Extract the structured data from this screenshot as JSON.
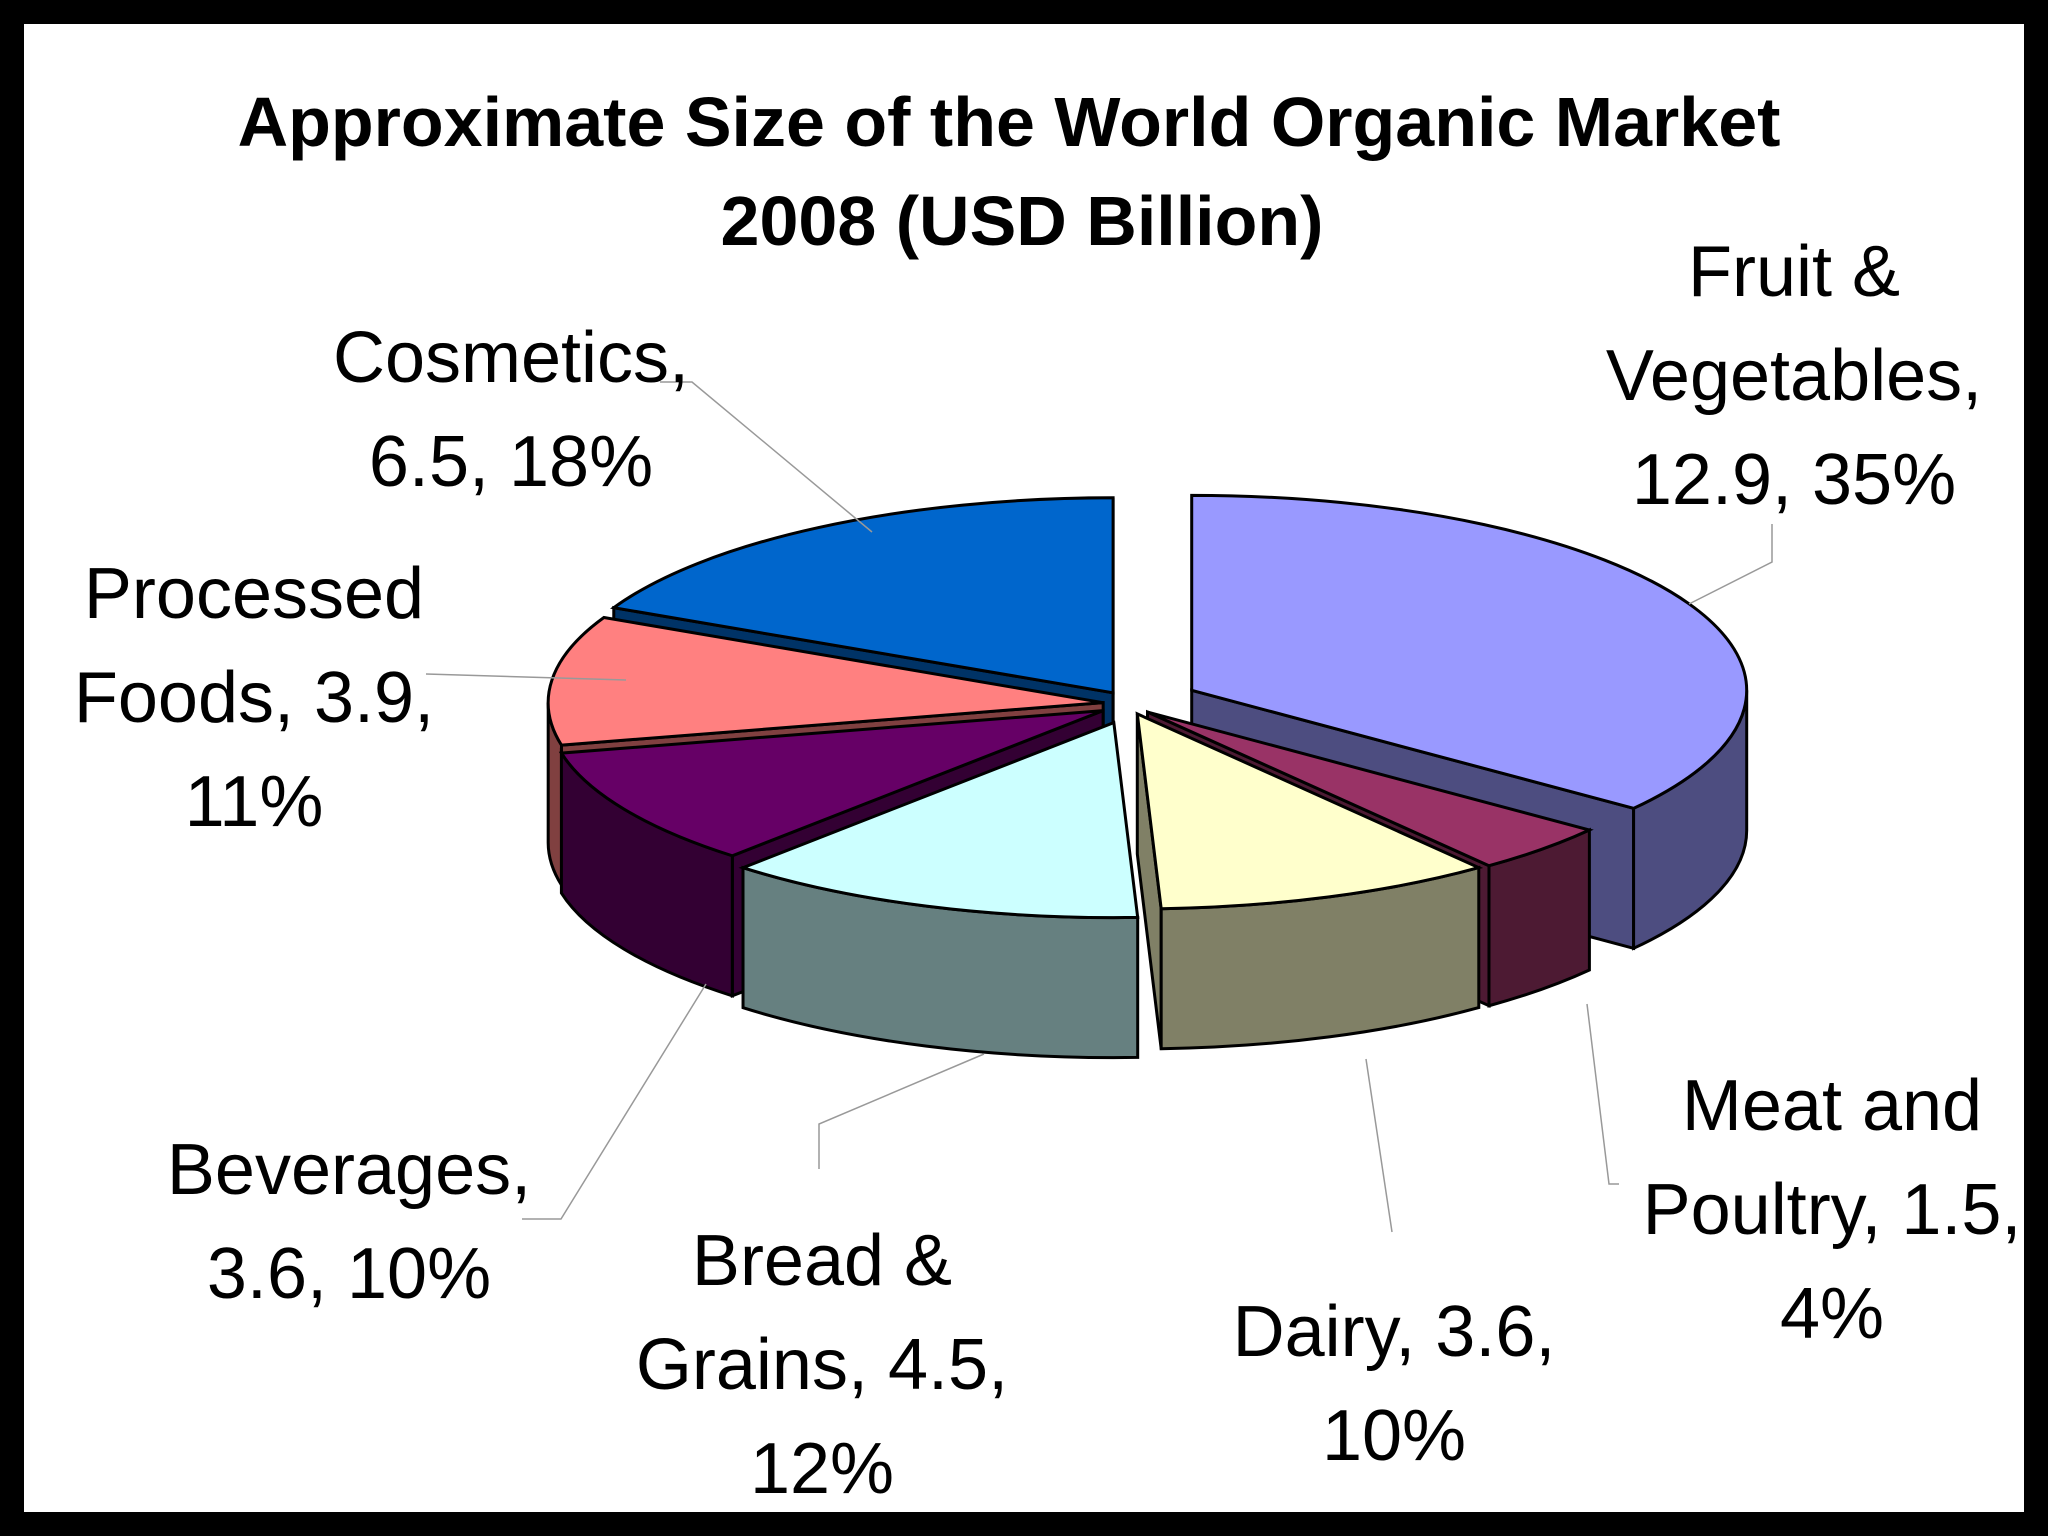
{
  "chart_data": {
    "type": "pie",
    "style": "3d-exploded",
    "title": "Approximate Size of the World Organic Market 2008 (USD Billion)",
    "title_lines": [
      "Approximate Size of the World Organic Market",
      "2008 (USD Billion)"
    ],
    "slices": [
      {
        "name": "Fruit & Vegetables",
        "value": 12.9,
        "percent": 35,
        "color": "#9999ff",
        "side_color": "#4d4d80",
        "label_lines": [
          "Fruit &",
          "Vegetables,",
          "12.9, 35%"
        ]
      },
      {
        "name": "Meat and Poultry",
        "value": 1.5,
        "percent": 4,
        "color": "#993366",
        "side_color": "#4d1a33",
        "label_lines": [
          "Meat and",
          "Poultry, 1.5,",
          "4%"
        ]
      },
      {
        "name": "Dairy",
        "value": 3.6,
        "percent": 10,
        "color": "#ffffcc",
        "side_color": "#808066",
        "label_lines": [
          "Dairy, 3.6,",
          "10%"
        ]
      },
      {
        "name": "Bread & Grains",
        "value": 4.5,
        "percent": 12,
        "color": "#ccffff",
        "side_color": "#668080",
        "label_lines": [
          "Bread &",
          "Grains, 4.5,",
          "12%"
        ]
      },
      {
        "name": "Beverages",
        "value": 3.6,
        "percent": 10,
        "color": "#660066",
        "side_color": "#330033",
        "label_lines": [
          "Beverages,",
          "3.6, 10%"
        ]
      },
      {
        "name": "Processed Foods",
        "value": 3.9,
        "percent": 11,
        "color": "#ff8080",
        "side_color": "#804040",
        "label_lines": [
          "Processed",
          "Foods, 3.9,",
          "11%"
        ]
      },
      {
        "name": "Cosmetics",
        "value": 6.5,
        "percent": 18,
        "color": "#0066cc",
        "side_color": "#003366",
        "label_lines": [
          "Cosmetics,",
          "6.5, 18%"
        ]
      }
    ],
    "legend": "none",
    "data_labels": "category, value, percent"
  }
}
